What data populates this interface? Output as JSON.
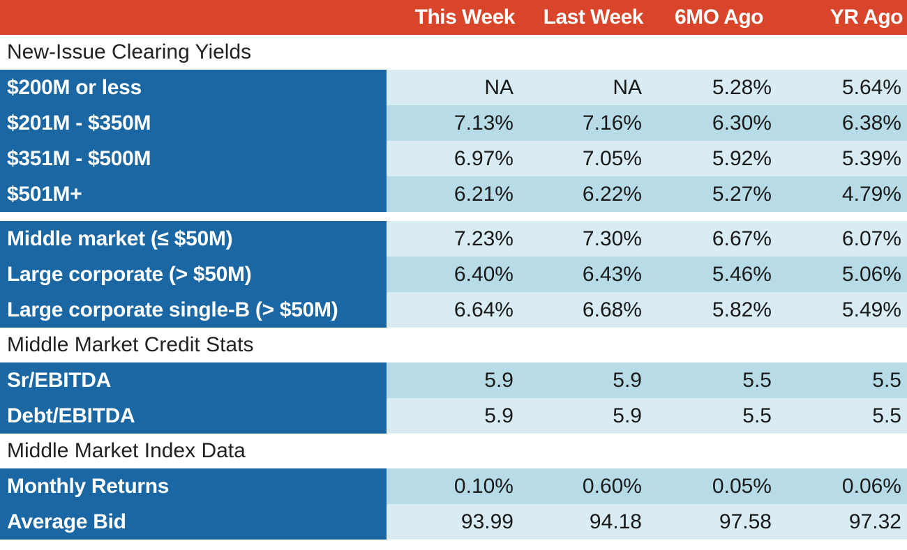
{
  "colors": {
    "header_bg": "#d8452a",
    "label_bg": "#1a67a3",
    "band_light": "#d9ecf3",
    "band_dark": "#b7dce8"
  },
  "chart_data": {
    "type": "table",
    "columns": [
      "This Week",
      "Last Week",
      "6MO Ago",
      "YR Ago"
    ],
    "sections": [
      {
        "title": "New-Issue Clearing Yields",
        "groups": [
          [
            {
              "label": "$200M or less",
              "values": [
                "NA",
                "NA",
                "5.28%",
                "5.64%"
              ]
            },
            {
              "label": "$201M - $350M",
              "values": [
                "7.13%",
                "7.16%",
                "6.30%",
                "6.38%"
              ]
            },
            {
              "label": "$351M - $500M",
              "values": [
                "6.97%",
                "7.05%",
                "5.92%",
                "5.39%"
              ]
            },
            {
              "label": "$501M+",
              "values": [
                "6.21%",
                "6.22%",
                "5.27%",
                "4.79%"
              ]
            }
          ],
          [
            {
              "label": "Middle market (≤ $50M)",
              "values": [
                "7.23%",
                "7.30%",
                "6.67%",
                "6.07%"
              ]
            },
            {
              "label": "Large corporate (> $50M)",
              "values": [
                "6.40%",
                "6.43%",
                "5.46%",
                "5.06%"
              ]
            },
            {
              "label": "Large corporate single-B (> $50M)",
              "values": [
                "6.64%",
                "6.68%",
                "5.82%",
                "5.49%"
              ]
            }
          ]
        ]
      },
      {
        "title": "Middle Market Credit Stats",
        "groups": [
          [
            {
              "label": "Sr/EBITDA",
              "values": [
                "5.9",
                "5.9",
                "5.5",
                "5.5"
              ]
            },
            {
              "label": "Debt/EBITDA",
              "values": [
                "5.9",
                "5.9",
                "5.5",
                "5.5"
              ]
            }
          ]
        ]
      },
      {
        "title": "Middle Market Index Data",
        "groups": [
          [
            {
              "label": "Monthly Returns",
              "values": [
                "0.10%",
                "0.60%",
                "0.05%",
                "0.06%"
              ]
            },
            {
              "label": "Average Bid",
              "values": [
                "93.99",
                "94.18",
                "97.58",
                "97.32"
              ]
            }
          ]
        ]
      }
    ]
  }
}
